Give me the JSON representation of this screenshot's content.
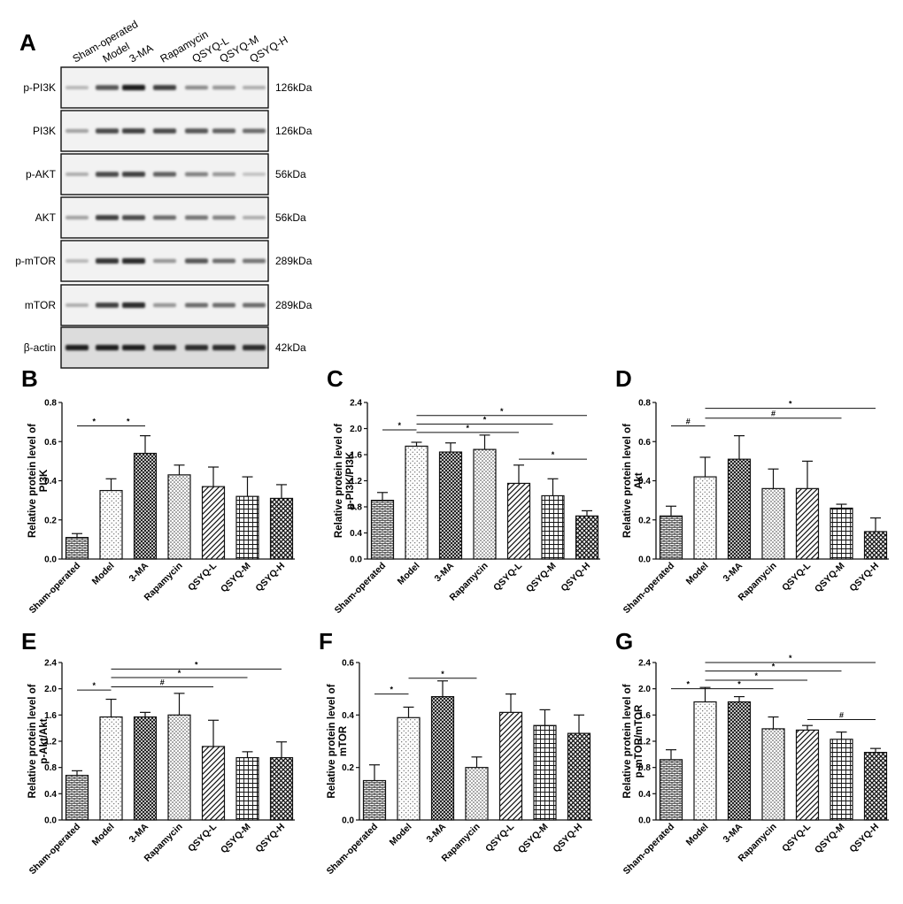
{
  "blot": {
    "panel_label": "A",
    "lanes": [
      "Sham-operated",
      "Model",
      "3-MA",
      "Rapamycin",
      "QSYQ-L",
      "QSYQ-M",
      "QSYQ-H"
    ],
    "rows": [
      {
        "protein": "p-PI3K",
        "size": "126kDa",
        "intensity": [
          0.25,
          0.7,
          0.95,
          0.8,
          0.45,
          0.4,
          0.3
        ]
      },
      {
        "protein": "PI3K",
        "size": "126kDa",
        "intensity": [
          0.35,
          0.75,
          0.8,
          0.75,
          0.7,
          0.65,
          0.6
        ]
      },
      {
        "protein": "p-AKT",
        "size": "56kDa",
        "intensity": [
          0.3,
          0.75,
          0.8,
          0.65,
          0.5,
          0.4,
          0.2
        ]
      },
      {
        "protein": "AKT",
        "size": "56kDa",
        "intensity": [
          0.35,
          0.8,
          0.75,
          0.6,
          0.55,
          0.5,
          0.3
        ]
      },
      {
        "protein": "p-mTOR",
        "size": "289kDa",
        "intensity": [
          0.25,
          0.85,
          0.9,
          0.4,
          0.7,
          0.6,
          0.55
        ]
      },
      {
        "protein": "mTOR",
        "size": "289kDa",
        "intensity": [
          0.3,
          0.8,
          0.9,
          0.4,
          0.6,
          0.6,
          0.6
        ]
      },
      {
        "protein": "β-actin",
        "size": "42kDa",
        "intensity": [
          0.95,
          0.95,
          0.95,
          0.9,
          0.9,
          0.9,
          0.9
        ]
      }
    ]
  },
  "chart_data": [
    {
      "type": "bar",
      "panel": "B",
      "ylabel": [
        "Relative protein level of",
        "PI3K"
      ],
      "ylim": [
        0,
        0.8
      ],
      "yticks": [
        "0.0",
        "0.2",
        "0.4",
        "0.6",
        "0.8"
      ],
      "categories": [
        "Sham-operated",
        "Model",
        "3-MA",
        "Rapamycin",
        "QSYQ-L",
        "QSYQ-M",
        "QSYQ-H"
      ],
      "values": [
        0.11,
        0.35,
        0.54,
        0.43,
        0.37,
        0.32,
        0.31
      ],
      "errors": [
        0.02,
        0.06,
        0.09,
        0.05,
        0.1,
        0.1,
        0.07
      ],
      "significance": [
        {
          "from": 0,
          "to": 1,
          "y": 0.68,
          "mark": "*"
        },
        {
          "from": 1,
          "to": 2,
          "y": 0.68,
          "mark": "*"
        }
      ]
    },
    {
      "type": "bar",
      "panel": "C",
      "ylabel": [
        "Relative protein level of",
        "p-PI3K/PI3K"
      ],
      "ylim": [
        0,
        2.4
      ],
      "yticks": [
        "0.0",
        "0.4",
        "0.8",
        "1.2",
        "1.6",
        "2.0",
        "2.4"
      ],
      "categories": [
        "Sham-operated",
        "Model",
        "3-MA",
        "Rapamycin",
        "QSYQ-L",
        "QSYQ-M",
        "QSYQ-H"
      ],
      "values": [
        0.9,
        1.73,
        1.64,
        1.68,
        1.16,
        0.97,
        0.66
      ],
      "errors": [
        0.12,
        0.06,
        0.14,
        0.22,
        0.28,
        0.26,
        0.08
      ],
      "significance": [
        {
          "from": 0,
          "to": 1,
          "y": 1.98,
          "mark": "*"
        },
        {
          "from": 1,
          "to": 6,
          "y": 2.2,
          "mark": "*"
        },
        {
          "from": 1,
          "to": 5,
          "y": 2.07,
          "mark": "*"
        },
        {
          "from": 1,
          "to": 4,
          "y": 1.94,
          "mark": "*"
        },
        {
          "from": 4,
          "to": 6,
          "y": 1.53,
          "mark": "*"
        }
      ]
    },
    {
      "type": "bar",
      "panel": "D",
      "ylabel": [
        "Relative protein level of",
        "Akt"
      ],
      "ylim": [
        0,
        0.8
      ],
      "yticks": [
        "0.0",
        "0.2",
        "0.4",
        "0.6",
        "0.8"
      ],
      "categories": [
        "Sham-operated",
        "Model",
        "3-MA",
        "Rapamycin",
        "QSYQ-L",
        "QSYQ-M",
        "QSYQ-H"
      ],
      "values": [
        0.22,
        0.42,
        0.51,
        0.36,
        0.36,
        0.26,
        0.14
      ],
      "errors": [
        0.05,
        0.1,
        0.12,
        0.1,
        0.14,
        0.02,
        0.07
      ],
      "significance": [
        {
          "from": 0,
          "to": 1,
          "y": 0.68,
          "mark": "#"
        },
        {
          "from": 1,
          "to": 6,
          "y": 0.77,
          "mark": "*"
        },
        {
          "from": 1,
          "to": 5,
          "y": 0.72,
          "mark": "#"
        }
      ]
    },
    {
      "type": "bar",
      "panel": "E",
      "ylabel": [
        "Relative protein level of",
        "p-Akt/Akt"
      ],
      "ylim": [
        0,
        2.4
      ],
      "yticks": [
        "0.0",
        "0.4",
        "0.8",
        "1.2",
        "1.6",
        "2.0",
        "2.4"
      ],
      "categories": [
        "Sham-operated",
        "Model",
        "3-MA",
        "Rapamycin",
        "QSYQ-L",
        "QSYQ-M",
        "QSYQ-H"
      ],
      "values": [
        0.68,
        1.57,
        1.57,
        1.6,
        1.12,
        0.95,
        0.95
      ],
      "errors": [
        0.07,
        0.27,
        0.07,
        0.33,
        0.4,
        0.09,
        0.24
      ],
      "significance": [
        {
          "from": 0,
          "to": 1,
          "y": 1.98,
          "mark": "*"
        },
        {
          "from": 1,
          "to": 6,
          "y": 2.3,
          "mark": "*"
        },
        {
          "from": 1,
          "to": 5,
          "y": 2.17,
          "mark": "*"
        },
        {
          "from": 1,
          "to": 4,
          "y": 2.03,
          "mark": "#"
        }
      ]
    },
    {
      "type": "bar",
      "panel": "F",
      "ylabel": [
        "Relative protein level of",
        "mTOR"
      ],
      "ylim": [
        0,
        0.6
      ],
      "yticks": [
        "0.0",
        "0.2",
        "0.4",
        "0.6"
      ],
      "categories": [
        "Sham-operated",
        "Model",
        "3-MA",
        "Rapamycin",
        "QSYQ-L",
        "QSYQ-M",
        "QSYQ-H"
      ],
      "values": [
        0.15,
        0.39,
        0.47,
        0.2,
        0.41,
        0.36,
        0.33
      ],
      "errors": [
        0.06,
        0.04,
        0.06,
        0.04,
        0.07,
        0.06,
        0.07
      ],
      "significance": [
        {
          "from": 0,
          "to": 1,
          "y": 0.48,
          "mark": "*"
        },
        {
          "from": 1,
          "to": 3,
          "y": 0.54,
          "mark": "*"
        }
      ]
    },
    {
      "type": "bar",
      "panel": "G",
      "ylabel": [
        "Relative protein level of",
        "p-mTOR/mTOR"
      ],
      "ylim": [
        0,
        2.4
      ],
      "yticks": [
        "0.0",
        "0.4",
        "0.8",
        "1.2",
        "1.6",
        "2.0",
        "2.4"
      ],
      "categories": [
        "Sham-operated",
        "Model",
        "3-MA",
        "Rapamycin",
        "QSYQ-L",
        "QSYQ-M",
        "QSYQ-H"
      ],
      "values": [
        0.92,
        1.8,
        1.8,
        1.39,
        1.37,
        1.23,
        1.03
      ],
      "errors": [
        0.15,
        0.22,
        0.08,
        0.18,
        0.07,
        0.11,
        0.06
      ],
      "significance": [
        {
          "from": 0,
          "to": 1,
          "y": 2.0,
          "mark": "*"
        },
        {
          "from": 1,
          "to": 6,
          "y": 2.4,
          "mark": "*"
        },
        {
          "from": 1,
          "to": 5,
          "y": 2.27,
          "mark": "*"
        },
        {
          "from": 1,
          "to": 4,
          "y": 2.13,
          "mark": "*"
        },
        {
          "from": 1,
          "to": 3,
          "y": 2.0,
          "mark": "*"
        },
        {
          "from": 4,
          "to": 6,
          "y": 1.53,
          "mark": "#"
        }
      ]
    }
  ]
}
